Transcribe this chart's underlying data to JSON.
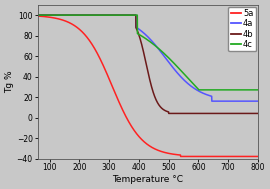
{
  "title": "",
  "xlabel": "Temperature °C",
  "ylabel": "Tg %",
  "xlim": [
    60,
    800
  ],
  "ylim": [
    -40,
    110
  ],
  "xticks": [
    100,
    200,
    300,
    400,
    500,
    600,
    700,
    800
  ],
  "yticks": [
    -40,
    -20,
    0,
    20,
    40,
    60,
    80,
    100
  ],
  "legend": [
    "5a",
    "4a",
    "4b",
    "4c"
  ],
  "colors": [
    "#ff2222",
    "#5555ff",
    "#6b1a1a",
    "#22aa22"
  ],
  "background": "#c8c8c8",
  "plot_bg": "#c8c8c8"
}
